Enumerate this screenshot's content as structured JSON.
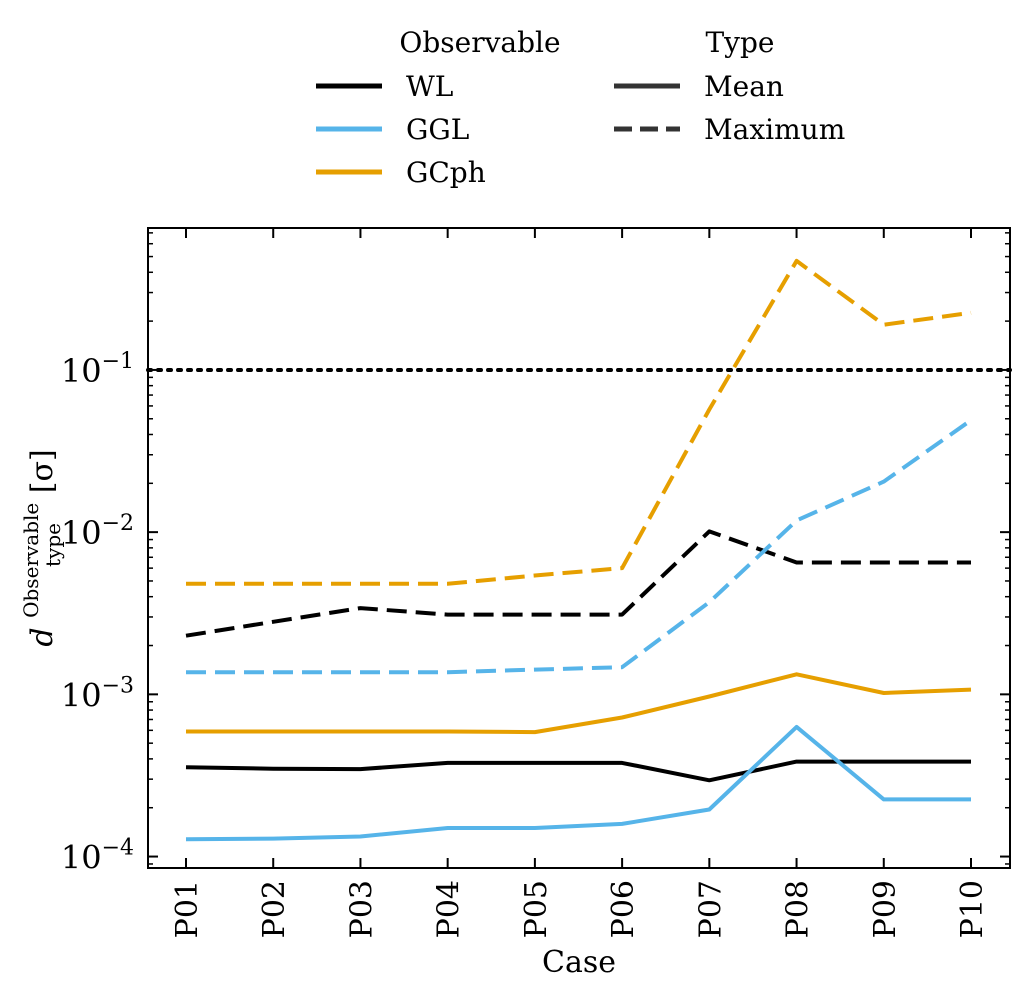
{
  "chart_data": {
    "type": "line",
    "title": "",
    "xlabel": "Case",
    "ylabel": "d",
    "ylabel_super": "Observable",
    "ylabel_sub": "type",
    "ylabel_unit": "[σ]",
    "yscale": "log",
    "ylim": [
      8.5e-05,
      0.75
    ],
    "yticks": [
      {
        "value": 0.0001,
        "label": "10",
        "exp": "−4"
      },
      {
        "value": 0.001,
        "label": "10",
        "exp": "−3"
      },
      {
        "value": 0.01,
        "label": "10",
        "exp": "−2"
      },
      {
        "value": 0.1,
        "label": "10",
        "exp": "−1"
      }
    ],
    "categories": [
      "P01",
      "P02",
      "P03",
      "P04",
      "P05",
      "P06",
      "P07",
      "P08",
      "P09",
      "P10"
    ],
    "threshold": {
      "value": 0.1,
      "style": "dotted",
      "color": "#000000"
    },
    "legend_observable": {
      "title": "Observable",
      "entries": [
        {
          "label": "WL",
          "color": "#000000"
        },
        {
          "label": "GGL",
          "color": "#56b4e9"
        },
        {
          "label": "GCph",
          "color": "#e69f00"
        }
      ]
    },
    "legend_type": {
      "title": "Type",
      "entries": [
        {
          "label": "Mean",
          "style": "solid",
          "color": "#333333"
        },
        {
          "label": "Maximum",
          "style": "dashed",
          "color": "#333333"
        }
      ]
    },
    "series": [
      {
        "name": "WL",
        "type": "Mean",
        "color": "#000000",
        "dashed": false,
        "values": [
          0.000355,
          0.000348,
          0.000346,
          0.000378,
          0.000378,
          0.000378,
          0.000295,
          0.000385,
          0.000385,
          0.000385
        ]
      },
      {
        "name": "WL",
        "type": "Maximum",
        "color": "#000000",
        "dashed": true,
        "values": [
          0.0023,
          0.0028,
          0.0034,
          0.0031,
          0.0031,
          0.0031,
          0.0101,
          0.0065,
          0.0065,
          0.0065
        ]
      },
      {
        "name": "GGL",
        "type": "Mean",
        "color": "#56b4e9",
        "dashed": false,
        "values": [
          0.000128,
          0.000129,
          0.000133,
          0.00015,
          0.00015,
          0.000159,
          0.000195,
          0.00063,
          0.000225,
          0.000225
        ]
      },
      {
        "name": "GGL",
        "type": "Maximum",
        "color": "#56b4e9",
        "dashed": true,
        "values": [
          0.00137,
          0.00137,
          0.00137,
          0.00137,
          0.00142,
          0.00147,
          0.0037,
          0.0118,
          0.0205,
          0.049
        ]
      },
      {
        "name": "GCph",
        "type": "Mean",
        "color": "#e69f00",
        "dashed": false,
        "values": [
          0.00059,
          0.00059,
          0.00059,
          0.00059,
          0.000585,
          0.00072,
          0.00097,
          0.00133,
          0.00102,
          0.00107
        ]
      },
      {
        "name": "GCph",
        "type": "Maximum",
        "color": "#e69f00",
        "dashed": true,
        "values": [
          0.0048,
          0.0048,
          0.0048,
          0.0048,
          0.0054,
          0.006,
          0.057,
          0.47,
          0.19,
          0.225
        ]
      }
    ]
  }
}
